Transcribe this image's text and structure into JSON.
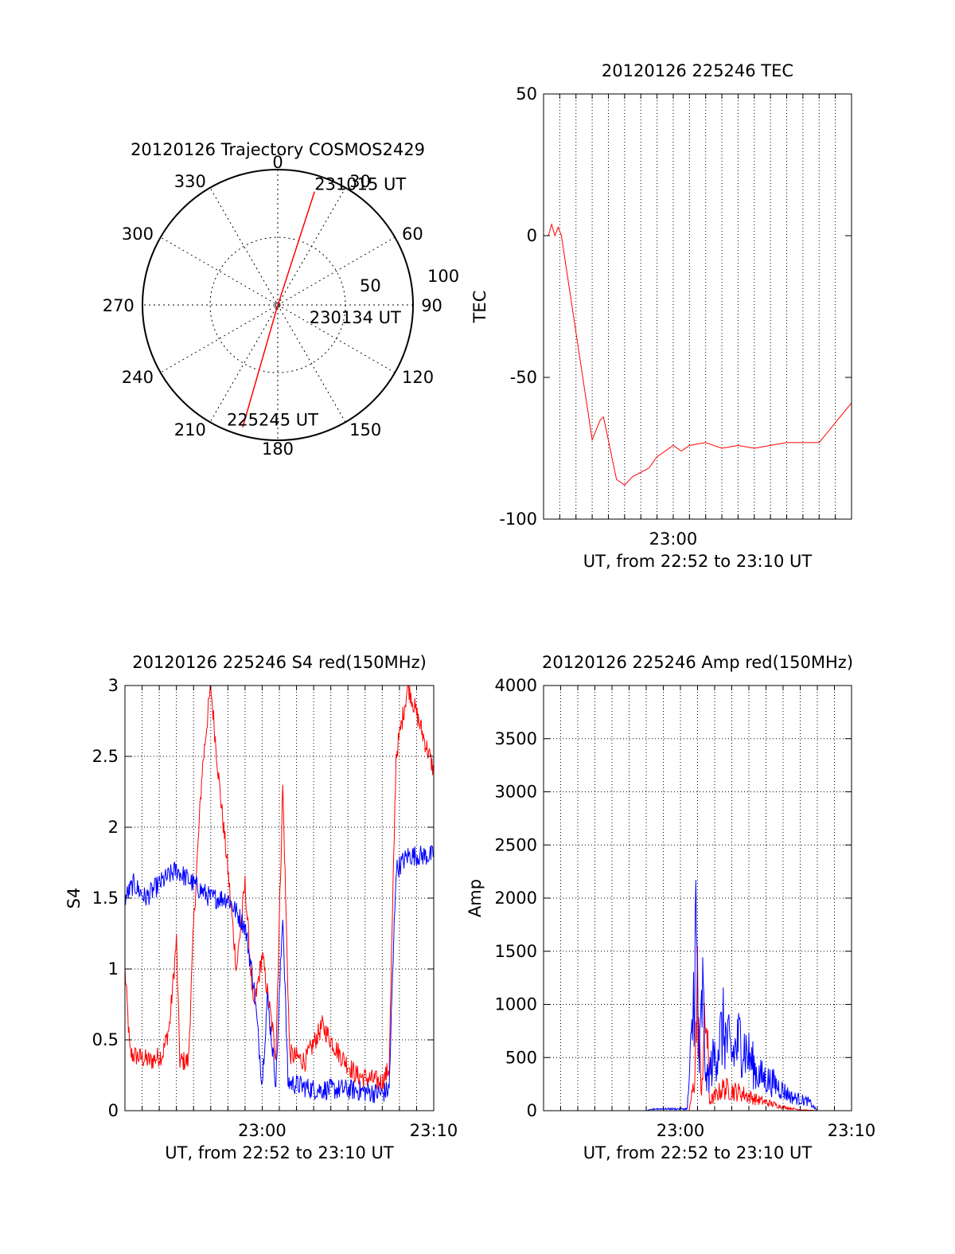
{
  "colors": {
    "red": "#ff0000",
    "blue": "#0000ff",
    "black": "#000000"
  },
  "chart_data": [
    {
      "id": "polar",
      "type": "scatter",
      "title": "20120126 Trajectory COSMOS2429",
      "coordinate_system": "polar (azimuth deg clockwise from north, radius = zenith angle)",
      "azimuth_labels": [
        "0",
        "30",
        "60",
        "90",
        "120",
        "150",
        "180",
        "210",
        "240",
        "270",
        "300",
        "330"
      ],
      "radius_labels": [
        "50",
        "100"
      ],
      "rmax": 100,
      "grid": true,
      "series": [
        {
          "color": "red",
          "points": [
            [
              18,
              88
            ],
            [
              195,
              2
            ],
            [
              196,
              94
            ]
          ]
        }
      ],
      "annotations": [
        {
          "text": "231015 UT",
          "az": 18,
          "r": 88
        },
        {
          "text": "230134 UT",
          "az": 120,
          "r": 8
        },
        {
          "text": "225245 UT",
          "az": 196,
          "r": 94
        }
      ]
    },
    {
      "id": "tec",
      "type": "line",
      "title": "20120126 225246 TEC",
      "xlabel": "UT, from 22:52 to 23:10 UT",
      "ylabel": "TEC",
      "xlim": [
        -8,
        11
      ],
      "ylim": [
        -100,
        50
      ],
      "x_ticks": [
        "23:00"
      ],
      "x_tick_values": [
        0
      ],
      "y_ticks": [
        "50",
        "0",
        "-50",
        "-100"
      ],
      "y_tick_values": [
        50,
        0,
        -50,
        -100
      ],
      "grid": "x-dotted",
      "series": [
        {
          "color": "red",
          "points": [
            [
              -7.7,
              0
            ],
            [
              -7.5,
              4
            ],
            [
              -7.3,
              0
            ],
            [
              -7.1,
              3
            ],
            [
              -6.9,
              0
            ],
            [
              -5.0,
              -72
            ],
            [
              -4.5,
              -65
            ],
            [
              -4.3,
              -64
            ],
            [
              -3.5,
              -86
            ],
            [
              -3.0,
              -88
            ],
            [
              -2.5,
              -85
            ],
            [
              -1.5,
              -82
            ],
            [
              -1.0,
              -78
            ],
            [
              -0.5,
              -76
            ],
            [
              0,
              -74
            ],
            [
              0.5,
              -76
            ],
            [
              1,
              -74
            ],
            [
              2,
              -73
            ],
            [
              3,
              -75
            ],
            [
              4,
              -74
            ],
            [
              5,
              -75
            ],
            [
              6,
              -74
            ],
            [
              7,
              -73
            ],
            [
              8,
              -73
            ],
            [
              9,
              -73
            ],
            [
              10,
              -66
            ],
            [
              11,
              -59
            ]
          ]
        }
      ]
    },
    {
      "id": "s4",
      "type": "line",
      "title": "20120126 225246 S4 red(150MHz)",
      "xlabel": "UT, from 22:52 to 23:10 UT",
      "ylabel": "S4",
      "xlim": [
        -8,
        10
      ],
      "ylim": [
        0,
        3
      ],
      "x_ticks": [
        "23:00",
        "23:10"
      ],
      "x_tick_values": [
        0,
        10
      ],
      "y_ticks": [
        "0",
        "0.5",
        "1",
        "1.5",
        "2",
        "2.5",
        "3"
      ],
      "y_tick_values": [
        0,
        0.5,
        1,
        1.5,
        2,
        2.5,
        3
      ],
      "grid": "dotted",
      "series": [
        {
          "color": "red",
          "noise": 0.05,
          "points": [
            [
              -8,
              1.0
            ],
            [
              -7.7,
              0.4
            ],
            [
              -6.5,
              0.35
            ],
            [
              -5.8,
              0.4
            ],
            [
              -5.4,
              0.6
            ],
            [
              -5.0,
              1.2
            ],
            [
              -4.8,
              0.35
            ],
            [
              -4.3,
              0.35
            ],
            [
              -4.0,
              1.3
            ],
            [
              -3.5,
              2.4
            ],
            [
              -3.0,
              3.0
            ],
            [
              -2.5,
              2.3
            ],
            [
              -2.0,
              1.7
            ],
            [
              -1.5,
              1.0
            ],
            [
              -1.0,
              1.6
            ],
            [
              -0.5,
              0.7
            ],
            [
              0,
              1.1
            ],
            [
              0.8,
              0.4
            ],
            [
              1.2,
              2.3
            ],
            [
              1.6,
              0.4
            ],
            [
              2.5,
              0.35
            ],
            [
              3.5,
              0.6
            ],
            [
              4.5,
              0.4
            ],
            [
              5.5,
              0.25
            ],
            [
              7.0,
              0.2
            ],
            [
              7.4,
              0.3
            ],
            [
              7.8,
              2.5
            ],
            [
              8.5,
              3.0
            ],
            [
              10,
              2.4
            ]
          ]
        },
        {
          "color": "blue",
          "noise": 0.05,
          "points": [
            [
              -8,
              1.5
            ],
            [
              -7.5,
              1.6
            ],
            [
              -6.8,
              1.5
            ],
            [
              -6,
              1.6
            ],
            [
              -5,
              1.7
            ],
            [
              -4,
              1.6
            ],
            [
              -3,
              1.5
            ],
            [
              -2,
              1.5
            ],
            [
              -1.5,
              1.4
            ],
            [
              -1.0,
              1.3
            ],
            [
              -0.5,
              0.9
            ],
            [
              0,
              0.2
            ],
            [
              0.3,
              0.8
            ],
            [
              0.8,
              0.2
            ],
            [
              1.2,
              1.4
            ],
            [
              1.5,
              0.2
            ],
            [
              3,
              0.15
            ],
            [
              5,
              0.15
            ],
            [
              7,
              0.12
            ],
            [
              7.4,
              0.15
            ],
            [
              7.8,
              1.7
            ],
            [
              8.5,
              1.8
            ],
            [
              10,
              1.8
            ]
          ]
        }
      ]
    },
    {
      "id": "amp",
      "type": "line",
      "title": "20120126 225246 Amp red(150MHz)",
      "xlabel": "UT, from 22:52 to 23:10 UT",
      "ylabel": "Amp",
      "xlim": [
        -8,
        10
      ],
      "ylim": [
        0,
        4000
      ],
      "x_ticks": [
        "23:00",
        "23:10"
      ],
      "x_tick_values": [
        0,
        10
      ],
      "y_ticks": [
        "0",
        "500",
        "1000",
        "1500",
        "2000",
        "2500",
        "3000",
        "3500",
        "4000"
      ],
      "y_tick_values": [
        0,
        500,
        1000,
        1500,
        2000,
        2500,
        3000,
        3500,
        4000
      ],
      "grid": "dotted",
      "series": [
        {
          "color": "red",
          "noise": 0.0,
          "points": [
            [
              -8,
              0
            ],
            [
              0.5,
              0
            ],
            [
              0.8,
              300
            ],
            [
              1.0,
              1300
            ],
            [
              1.2,
              200
            ],
            [
              1.5,
              1100
            ],
            [
              1.7,
              100
            ],
            [
              2.5,
              250
            ],
            [
              3.5,
              200
            ],
            [
              4.5,
              120
            ],
            [
              6.0,
              40
            ],
            [
              7.0,
              10
            ],
            [
              8.0,
              0
            ],
            [
              10,
              0
            ]
          ]
        },
        {
          "color": "blue",
          "noise": 0.0,
          "points": [
            [
              -8,
              0
            ],
            [
              -2,
              0
            ],
            [
              -1.5,
              20
            ],
            [
              0.4,
              20
            ],
            [
              0.7,
              900
            ],
            [
              0.9,
              2000
            ],
            [
              1.1,
              500
            ],
            [
              1.3,
              1300
            ],
            [
              1.5,
              300
            ],
            [
              2.5,
              900
            ],
            [
              3,
              600
            ],
            [
              3.5,
              800
            ],
            [
              4.5,
              400
            ],
            [
              5.5,
              300
            ],
            [
              6.5,
              150
            ],
            [
              7.5,
              100
            ],
            [
              8.0,
              0
            ],
            [
              10,
              0
            ]
          ]
        }
      ]
    }
  ]
}
